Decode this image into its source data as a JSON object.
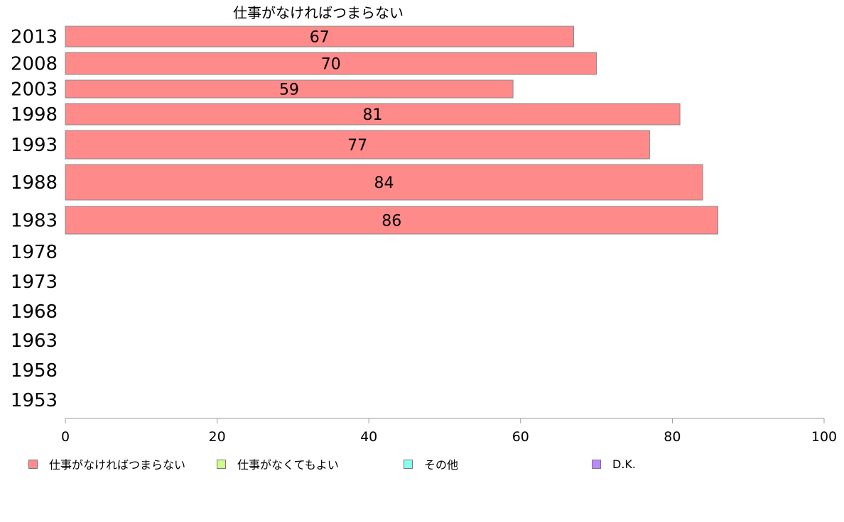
{
  "chart_data": {
    "type": "bar",
    "orientation": "horizontal",
    "title": "仕事がなければつまらない",
    "categories": [
      "2013",
      "2008",
      "2003",
      "1998",
      "1993",
      "1988",
      "1983",
      "1978",
      "1973",
      "1968",
      "1963",
      "1958",
      "1953"
    ],
    "series": [
      {
        "name": "仕事がなければつまらない",
        "color": "#ff8a8a",
        "values": [
          67,
          70,
          59,
          81,
          77,
          84,
          86,
          null,
          null,
          null,
          null,
          null,
          null
        ]
      },
      {
        "name": "仕事がなくてもよい",
        "color": "#ccff88",
        "values": [
          null,
          null,
          null,
          null,
          null,
          null,
          null,
          null,
          null,
          null,
          null,
          null,
          null
        ]
      },
      {
        "name": "その他",
        "color": "#88ffee",
        "values": [
          null,
          null,
          null,
          null,
          null,
          null,
          null,
          null,
          null,
          null,
          null,
          null,
          null
        ]
      },
      {
        "name": "D.K.",
        "color": "#bb88ff",
        "values": [
          null,
          null,
          null,
          null,
          null,
          null,
          null,
          null,
          null,
          null,
          null,
          null,
          null
        ]
      }
    ],
    "data_labels": [
      "67",
      "70",
      "59",
      "81",
      "77",
      "84",
      "86"
    ],
    "x_ticks": [
      "0",
      "20",
      "40",
      "60",
      "80",
      "100"
    ],
    "xlim": [
      0,
      100
    ],
    "grid": false,
    "legend_position": "bottom"
  }
}
